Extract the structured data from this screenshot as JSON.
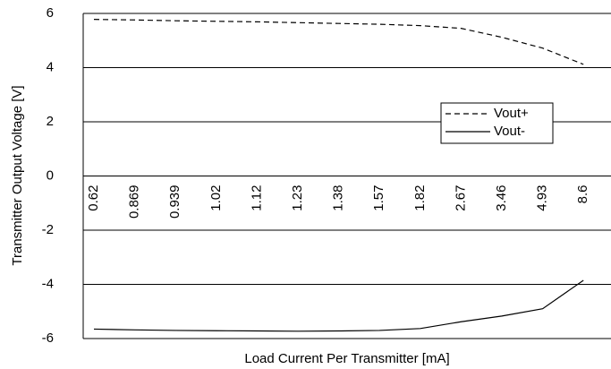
{
  "chart_data": {
    "type": "line",
    "x_label": "Load Current Per Transmitter [mA]",
    "y_label": "Transmitter Output Voltage [V]",
    "categories": [
      "0.62",
      "0.869",
      "0.939",
      "1.02",
      "1.12",
      "1.23",
      "1.38",
      "1.57",
      "1.82",
      "2.67",
      "3.46",
      "4.93",
      "8.6"
    ],
    "series": [
      {
        "name": "Vout+",
        "color": "#000000",
        "dash": true,
        "values": [
          5.78,
          5.76,
          5.73,
          5.71,
          5.69,
          5.66,
          5.63,
          5.6,
          5.55,
          5.45,
          5.12,
          4.72,
          4.12
        ]
      },
      {
        "name": "Vout-",
        "color": "#000000",
        "dash": false,
        "values": [
          -5.65,
          -5.68,
          -5.7,
          -5.71,
          -5.72,
          -5.73,
          -5.72,
          -5.7,
          -5.63,
          -5.38,
          -5.17,
          -4.9,
          -3.85
        ]
      }
    ],
    "ylim": [
      -6,
      6
    ],
    "yticks": [
      -6,
      -4,
      -2,
      0,
      2,
      4,
      6
    ],
    "grid": true
  }
}
